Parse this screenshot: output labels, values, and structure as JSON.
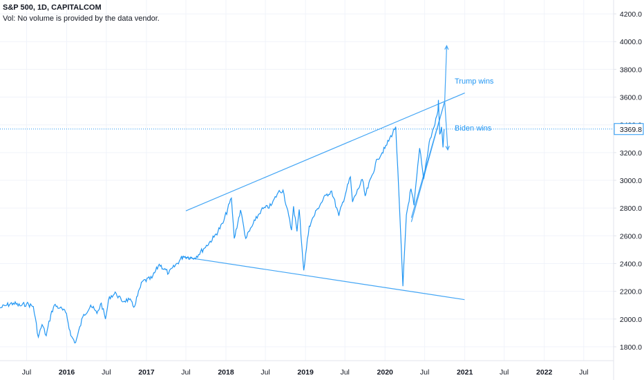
{
  "header": {
    "title": "S&P 500, 1D, CAPITALCOM",
    "volume_note": "Vol: No volume is provided by the data vendor."
  },
  "last_price": {
    "value": 3369.8,
    "label": "3369.8"
  },
  "colors": {
    "series": "#2196f3",
    "drawings": "#42a5f5",
    "grid": "#f0f3fa"
  },
  "annotations": {
    "trump": "Trump wins",
    "biden": "Biden wins"
  },
  "chart_data": {
    "type": "line",
    "ylim": [
      1700,
      4300
    ],
    "xlim": [
      "2015-03-01",
      "2022-11-15"
    ],
    "grid": true,
    "y_ticks": [
      "1800.0",
      "2000.0",
      "2200.0",
      "2400.0",
      "2600.0",
      "2800.0",
      "3000.0",
      "3200.0",
      "3400.0",
      "3600.0",
      "3800.0",
      "4000.0",
      "4200.0"
    ],
    "x_ticks": [
      {
        "label": "Jul",
        "date": "2015-07-01"
      },
      {
        "label": "2016",
        "date": "2016-01-01",
        "year": true
      },
      {
        "label": "Jul",
        "date": "2016-07-01"
      },
      {
        "label": "2017",
        "date": "2017-01-01",
        "year": true
      },
      {
        "label": "Jul",
        "date": "2017-07-01"
      },
      {
        "label": "2018",
        "date": "2018-01-01",
        "year": true
      },
      {
        "label": "Jul",
        "date": "2018-07-01"
      },
      {
        "label": "2019",
        "date": "2019-01-01",
        "year": true
      },
      {
        "label": "Jul",
        "date": "2019-07-01"
      },
      {
        "label": "2020",
        "date": "2020-01-01",
        "year": true
      },
      {
        "label": "Jul",
        "date": "2020-07-01"
      },
      {
        "label": "2021",
        "date": "2021-01-01",
        "year": true
      },
      {
        "label": "Jul",
        "date": "2021-07-01"
      },
      {
        "label": "2022",
        "date": "2022-01-01",
        "year": true
      },
      {
        "label": "Jul",
        "date": "2022-07-01"
      }
    ],
    "series": [
      {
        "points": [
          [
            "2015-03-01",
            2080
          ],
          [
            "2015-04-01",
            2100
          ],
          [
            "2015-05-01",
            2115
          ],
          [
            "2015-06-01",
            2095
          ],
          [
            "2015-07-01",
            2110
          ],
          [
            "2015-08-01",
            2090
          ],
          [
            "2015-08-24",
            1870
          ],
          [
            "2015-09-10",
            1960
          ],
          [
            "2015-09-29",
            1880
          ],
          [
            "2015-10-20",
            2030
          ],
          [
            "2015-11-05",
            2100
          ],
          [
            "2015-12-01",
            2080
          ],
          [
            "2015-12-31",
            2040
          ],
          [
            "2016-01-20",
            1880
          ],
          [
            "2016-02-11",
            1830
          ],
          [
            "2016-03-15",
            2015
          ],
          [
            "2016-04-20",
            2100
          ],
          [
            "2016-05-19",
            2040
          ],
          [
            "2016-06-08",
            2115
          ],
          [
            "2016-06-27",
            2000
          ],
          [
            "2016-07-15",
            2160
          ],
          [
            "2016-08-15",
            2185
          ],
          [
            "2016-09-09",
            2130
          ],
          [
            "2016-10-15",
            2140
          ],
          [
            "2016-11-04",
            2085
          ],
          [
            "2016-12-13",
            2270
          ],
          [
            "2017-01-26",
            2295
          ],
          [
            "2017-03-01",
            2395
          ],
          [
            "2017-04-13",
            2330
          ],
          [
            "2017-06-19",
            2453
          ],
          [
            "2017-08-10",
            2440
          ],
          [
            "2017-09-20",
            2505
          ],
          [
            "2017-11-07",
            2590
          ],
          [
            "2017-12-18",
            2690
          ],
          [
            "2018-01-26",
            2872
          ],
          [
            "2018-02-08",
            2581
          ],
          [
            "2018-03-09",
            2786
          ],
          [
            "2018-04-02",
            2581
          ],
          [
            "2018-05-15",
            2711
          ],
          [
            "2018-06-12",
            2786
          ],
          [
            "2018-07-27",
            2818
          ],
          [
            "2018-08-29",
            2914
          ],
          [
            "2018-09-20",
            2930
          ],
          [
            "2018-10-29",
            2641
          ],
          [
            "2018-11-07",
            2813
          ],
          [
            "2018-11-23",
            2632
          ],
          [
            "2018-12-03",
            2790
          ],
          [
            "2018-12-24",
            2351
          ],
          [
            "2019-01-18",
            2670
          ],
          [
            "2019-02-25",
            2796
          ],
          [
            "2019-04-05",
            2892
          ],
          [
            "2019-05-01",
            2923
          ],
          [
            "2019-06-03",
            2744
          ],
          [
            "2019-07-26",
            3025
          ],
          [
            "2019-08-05",
            2844
          ],
          [
            "2019-09-19",
            3006
          ],
          [
            "2019-10-02",
            2887
          ],
          [
            "2019-11-27",
            3153
          ],
          [
            "2019-12-31",
            3230
          ],
          [
            "2020-02-19",
            3386
          ],
          [
            "2020-03-09",
            2746
          ],
          [
            "2020-03-23",
            2237
          ],
          [
            "2020-04-08",
            2750
          ],
          [
            "2020-04-29",
            2939
          ],
          [
            "2020-05-13",
            2820
          ],
          [
            "2020-06-08",
            3232
          ],
          [
            "2020-06-26",
            3009
          ],
          [
            "2020-07-22",
            3276
          ],
          [
            "2020-08-12",
            3380
          ],
          [
            "2020-08-31",
            3500
          ],
          [
            "2020-09-02",
            3580
          ],
          [
            "2020-09-08",
            3331
          ],
          [
            "2020-09-16",
            3385
          ],
          [
            "2020-09-23",
            3237
          ],
          [
            "2020-09-28",
            3369.8
          ]
        ]
      }
    ]
  },
  "drawings": {
    "upper_trend": [
      [
        "2017-07-01",
        2780
      ],
      [
        "2021-01-01",
        3630
      ]
    ],
    "lower_trend": [
      [
        "2017-06-10",
        2450
      ],
      [
        "2020-12-31",
        2140
      ]
    ],
    "wedge_top": [
      [
        "2020-05-01",
        2700
      ],
      [
        "2020-10-01",
        3570
      ]
    ],
    "wedge_bottom": [
      [
        "2020-05-01",
        2730
      ],
      [
        "2020-10-01",
        3570
      ]
    ],
    "trump_arrow": [
      [
        "2020-10-01",
        3570
      ],
      [
        "2020-10-10",
        3970
      ]
    ],
    "biden_arrow": [
      [
        "2020-10-01",
        3570
      ],
      [
        "2020-10-15",
        3220
      ]
    ]
  }
}
